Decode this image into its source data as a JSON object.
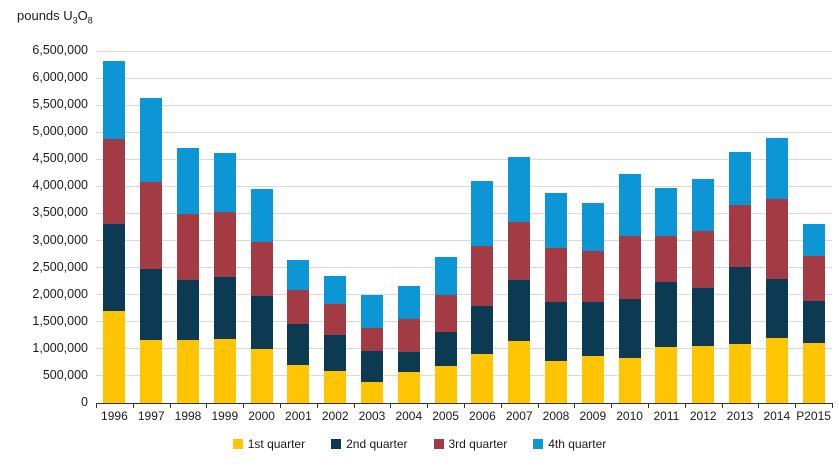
{
  "title": {
    "prefix": "pounds U",
    "sub3": "3",
    "mid": "O",
    "sub8": "8"
  },
  "colors": {
    "gridline": "#d9d9d9",
    "axis": "#333333",
    "text": "#1a1a1a",
    "background": "#ffffff"
  },
  "chart_data": {
    "type": "bar",
    "stacked": true,
    "title": "pounds U3O8",
    "xlabel": "",
    "ylabel": "pounds U3O8",
    "ylim": [
      0,
      6500000
    ],
    "ytick_step": 500000,
    "grid": "horizontal",
    "legend_position": "bottom",
    "categories": [
      "1996",
      "1997",
      "1998",
      "1999",
      "2000",
      "2001",
      "2002",
      "2003",
      "2004",
      "2005",
      "2006",
      "2007",
      "2008",
      "2009",
      "2010",
      "2011",
      "2012",
      "2013",
      "2014",
      "P2015"
    ],
    "series": [
      {
        "name": "1st quarter",
        "color": "#FFC502",
        "values": [
          1700000,
          1160000,
          1160000,
          1180000,
          1000000,
          700000,
          600000,
          380000,
          570000,
          680000,
          900000,
          1150000,
          780000,
          860000,
          840000,
          1030000,
          1050000,
          1090000,
          1200000,
          1110000
        ]
      },
      {
        "name": "2nd quarter",
        "color": "#0B3A52",
        "values": [
          1600000,
          1310000,
          1110000,
          1140000,
          980000,
          760000,
          660000,
          580000,
          380000,
          630000,
          900000,
          1130000,
          1080000,
          1000000,
          1080000,
          1210000,
          1080000,
          1430000,
          1090000,
          780000
        ]
      },
      {
        "name": "3rd quarter",
        "color": "#A33B45",
        "values": [
          1570000,
          1620000,
          1220000,
          1200000,
          1000000,
          620000,
          570000,
          420000,
          610000,
          690000,
          1100000,
          1070000,
          1000000,
          940000,
          1160000,
          840000,
          1050000,
          1140000,
          1480000,
          820000
        ]
      },
      {
        "name": "4th quarter",
        "color": "#0C96D5",
        "values": [
          1440000,
          1550000,
          1220000,
          1090000,
          970000,
          570000,
          510000,
          620000,
          610000,
          690000,
          1200000,
          1190000,
          1020000,
          900000,
          1150000,
          900000,
          960000,
          980000,
          1120000,
          590000
        ]
      }
    ]
  }
}
